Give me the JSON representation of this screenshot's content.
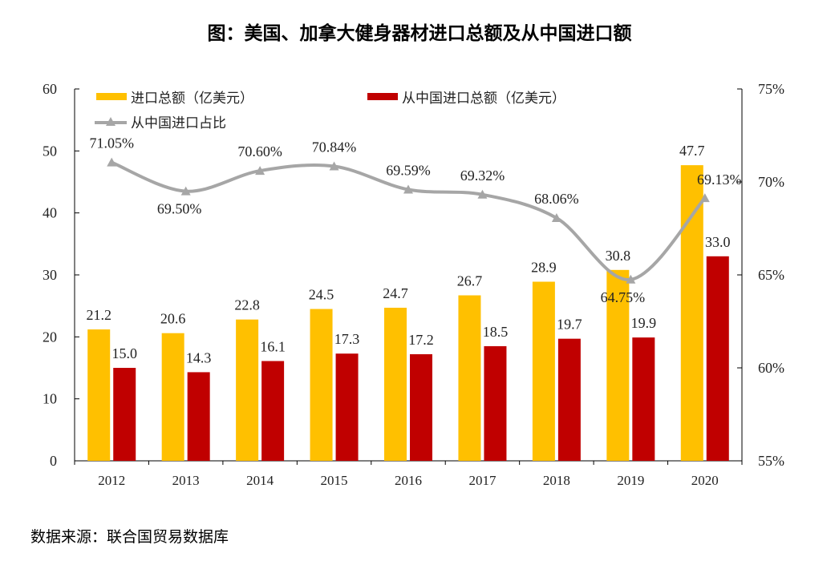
{
  "title": "图：美国、加拿大健身器材进口总额及从中国进口额",
  "source": "数据来源：联合国贸易数据库",
  "chart_data": {
    "type": "bar",
    "title": "图：美国、加拿大健身器材进口总额及从中国进口额",
    "categories": [
      "2012",
      "2013",
      "2014",
      "2015",
      "2016",
      "2017",
      "2018",
      "2019",
      "2020"
    ],
    "series": [
      {
        "name": "进口总额（亿美元）",
        "type": "bar",
        "axis": "left",
        "color": "#FFC000",
        "values": [
          21.2,
          20.6,
          22.8,
          24.5,
          24.7,
          26.7,
          28.9,
          30.8,
          47.7
        ]
      },
      {
        "name": "从中国进口总额（亿美元）",
        "type": "bar",
        "axis": "left",
        "color": "#C00000",
        "values": [
          15.0,
          14.3,
          16.1,
          17.3,
          17.2,
          18.5,
          19.7,
          19.9,
          33.0
        ]
      },
      {
        "name": "从中国进口占比",
        "type": "line",
        "axis": "right",
        "color": "#A6A6A6",
        "marker": "triangle",
        "values": [
          71.05,
          69.5,
          70.6,
          70.84,
          69.59,
          69.32,
          68.06,
          64.75,
          69.13
        ],
        "labels": [
          "71.05%",
          "69.50%",
          "70.60%",
          "70.84%",
          "69.59%",
          "69.32%",
          "68.06%",
          "64.75%",
          "69.13%"
        ]
      }
    ],
    "bar_labels": [
      [
        "21.2",
        "20.6",
        "22.8",
        "24.5",
        "24.7",
        "26.7",
        "28.9",
        "30.8",
        "47.7"
      ],
      [
        "15.0",
        "14.3",
        "16.1",
        "17.3",
        "17.2",
        "18.5",
        "19.7",
        "19.9",
        "33.0"
      ]
    ],
    "left_axis": {
      "ylim": [
        0,
        60
      ],
      "ticks": [
        "0",
        "10",
        "20",
        "30",
        "40",
        "50",
        "60"
      ]
    },
    "right_axis": {
      "ylim": [
        55,
        75
      ],
      "ticks": [
        "55%",
        "60%",
        "65%",
        "70%",
        "75%"
      ]
    },
    "grid": false,
    "legend": "top-left"
  }
}
